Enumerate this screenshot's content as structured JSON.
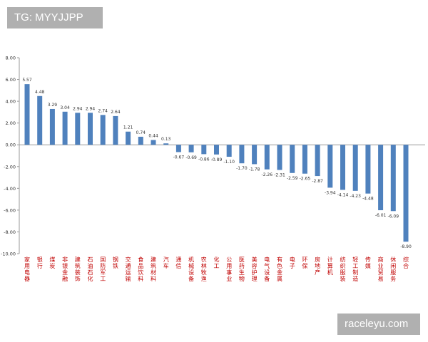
{
  "watermark_top": "TG: MYYJJPP",
  "watermark_bottom": "raceleyu.com",
  "colors": {
    "bar": "#4f81bd",
    "category_label": "#c00000",
    "axis": "#9a9a9a",
    "text": "#333333",
    "badge": "#b0b0b0"
  },
  "chart_data": {
    "type": "bar",
    "title": "",
    "xlabel": "",
    "ylabel": "",
    "ylim": [
      -10,
      8
    ],
    "yticks": [
      "8.00",
      "6.00",
      "4.00",
      "2.00",
      "0.00",
      "-2.00",
      "-4.00",
      "-6.00",
      "-8.00",
      "-10.00"
    ],
    "grid": false,
    "categories": [
      "家用电器",
      "银行",
      "煤炭",
      "非银金融",
      "建筑装饰",
      "石油石化",
      "国防军工",
      "钢铁",
      "交通运输",
      "食品饮料",
      "建筑材料",
      "汽车",
      "通信",
      "机械设备",
      "农林牧渔",
      "化工",
      "公用事业",
      "医药生物",
      "美容护理",
      "电气设备",
      "有色金属",
      "电子",
      "环保",
      "房地产",
      "计算机",
      "纺织服装",
      "轻工制造",
      "传媒",
      "商业贸易",
      "休闲服务",
      "综合"
    ],
    "values": [
      5.57,
      4.48,
      3.29,
      3.04,
      2.94,
      2.94,
      2.74,
      2.64,
      1.21,
      0.74,
      0.44,
      0.13,
      -0.67,
      -0.69,
      -0.86,
      -0.89,
      -1.1,
      -1.7,
      -1.78,
      -2.26,
      -2.31,
      -2.59,
      -2.65,
      -2.87,
      -3.94,
      -4.14,
      -4.23,
      -4.48,
      -6.01,
      -6.09,
      -8.9
    ],
    "value_labels": [
      "5.57",
      "4.48",
      "3.29",
      "3.04",
      "2.94",
      "2.94",
      "2.74",
      "2.64",
      "1.21",
      "0.74",
      "0.44",
      "0.13",
      "-0.67",
      "-0.69",
      "-0.86",
      "-0.89",
      "-1.10",
      "-1.70",
      "-1.78",
      "-2.26",
      "-2.31",
      "-2.59",
      "-2.65",
      "-2.87",
      "-3.94",
      "-4.14",
      "-4.23",
      "-4.48",
      "-6.01",
      "-6.09",
      "-8.90"
    ]
  }
}
